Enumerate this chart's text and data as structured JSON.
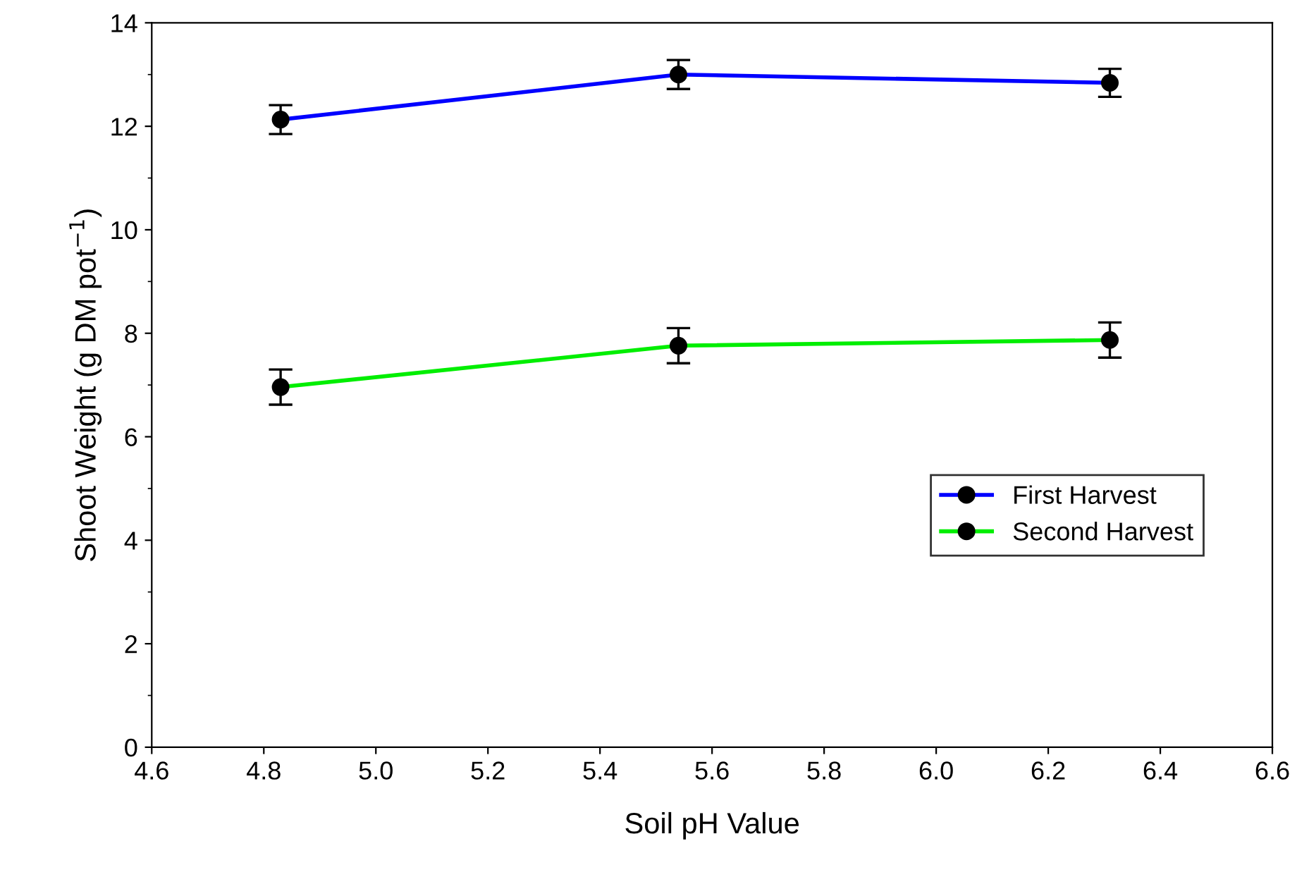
{
  "chart_data": {
    "type": "line",
    "xlabel": "Soil pH Value",
    "ylabel": "Shoot Weight (g DM pot$^{−1}$)",
    "x": [
      4.83,
      5.54,
      6.31
    ],
    "series": [
      {
        "name": "First Harvest",
        "color": "#0000ff",
        "values": [
          12.13,
          13.0,
          12.84
        ],
        "errors": [
          0.28,
          0.28,
          0.27
        ]
      },
      {
        "name": "Second Harvest",
        "color": "#00ee00",
        "values": [
          6.96,
          7.76,
          7.87
        ],
        "errors": [
          0.34,
          0.34,
          0.34
        ]
      }
    ],
    "xlim": [
      4.6,
      6.6
    ],
    "xticks": [
      {
        "value": 4.6,
        "label": "4.6"
      },
      {
        "value": 4.8,
        "label": "4.8"
      },
      {
        "value": 5.0,
        "label": "5.0"
      },
      {
        "value": 5.2,
        "label": "5.2"
      },
      {
        "value": 5.4,
        "label": "5.4"
      },
      {
        "value": 5.6,
        "label": "5.6"
      },
      {
        "value": 5.8,
        "label": "5.8"
      },
      {
        "value": 6.0,
        "label": "6.0"
      },
      {
        "value": 6.2,
        "label": "6.2"
      },
      {
        "value": 6.4,
        "label": "6.4"
      },
      {
        "value": 6.6,
        "label": "6.6"
      }
    ],
    "ylim": [
      0,
      14
    ],
    "yticks": [
      0,
      2,
      4,
      6,
      8,
      10,
      12,
      14
    ],
    "marker": "circle",
    "line_style": "solid",
    "legend": "right",
    "grid": false
  }
}
